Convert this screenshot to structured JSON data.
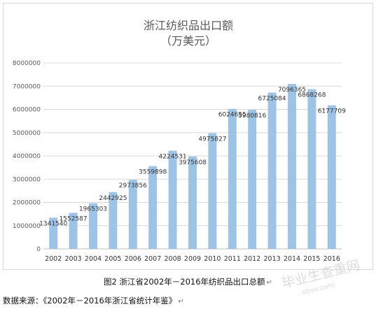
{
  "chart_data": {
    "type": "bar",
    "title": "浙江纺织品出口额",
    "subtitle": "（万美元）",
    "categories": [
      "2002",
      "2003",
      "2004",
      "2005",
      "2006",
      "2007",
      "2008",
      "2009",
      "2010",
      "2011",
      "2012",
      "2013",
      "2014",
      "2015",
      "2016"
    ],
    "values": [
      1341540,
      1552587,
      1965303,
      2442925,
      2973856,
      3559898,
      4224531,
      3975608,
      4975827,
      6024655,
      5980816,
      6725084,
      7096365,
      6868268,
      6177709
    ],
    "data_labels": [
      "1341540",
      "1552587",
      "1965303",
      "2442925",
      "2973856",
      "3559898",
      "4224531",
      "3975608",
      "4975827",
      "6024655",
      "5980816",
      "6725084",
      "7096365",
      "6868268",
      "6177709"
    ],
    "ylim": [
      0,
      8000000
    ],
    "yticks": [
      "0",
      "1000000",
      "2000000",
      "3000000",
      "4000000",
      "5000000",
      "6000000",
      "7000000",
      "8000000"
    ],
    "xlabel": "",
    "ylabel": "",
    "grid": true,
    "legend": "none",
    "bar_color": "#9dc3e6"
  },
  "caption": {
    "text": "图2  浙江省2002年－2016年纺织品出口总额",
    "mark": "↵"
  },
  "source": {
    "text": "数据来源：《2002年－2016年浙江省统计年鉴》",
    "mark": "↵"
  },
  "watermark": {
    "text": "毕业生查重网",
    "domain": "·sbvv.com"
  }
}
